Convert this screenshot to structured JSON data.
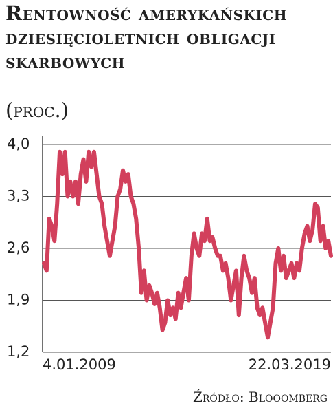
{
  "chart_data": {
    "type": "line",
    "title": "Rentowność amerykańskich dziesięcioletnich obligacji skarbowych",
    "subtitle": "(proc.)",
    "source": "Źródło: Blooomberg",
    "categories": [
      "4.01.2009",
      null,
      null,
      null,
      null,
      null,
      null,
      null,
      null,
      null,
      null,
      null,
      null,
      null,
      null,
      null,
      null,
      null,
      null,
      null,
      null,
      null,
      null,
      null,
      null,
      null,
      null,
      null,
      null,
      null,
      null,
      null,
      null,
      null,
      null,
      null,
      null,
      null,
      null,
      null,
      null,
      null,
      null,
      null,
      null,
      null,
      null,
      null,
      null,
      null,
      null,
      null,
      null,
      null,
      null,
      null,
      null,
      null,
      null,
      null,
      null,
      null,
      null,
      null,
      null,
      null,
      null,
      null,
      null,
      null,
      null,
      null,
      null,
      null,
      null,
      null,
      null,
      null,
      null,
      null,
      null,
      null,
      null,
      null,
      null,
      null,
      null,
      null,
      null,
      null,
      null,
      null,
      null,
      null,
      null,
      null,
      null,
      null,
      null,
      null,
      null,
      null,
      null,
      null,
      null,
      null,
      null,
      null,
      null,
      "22.03.2019"
    ],
    "values": [
      2.4,
      2.3,
      3.0,
      2.9,
      2.7,
      3.2,
      3.9,
      3.6,
      3.9,
      3.3,
      3.5,
      3.3,
      3.5,
      3.2,
      3.6,
      3.8,
      3.5,
      3.9,
      3.7,
      3.9,
      3.6,
      3.3,
      3.2,
      2.9,
      2.7,
      2.5,
      2.7,
      2.9,
      3.3,
      3.4,
      3.65,
      3.5,
      3.6,
      3.3,
      3.2,
      3.0,
      2.6,
      2.0,
      2.3,
      1.9,
      2.1,
      2.0,
      1.85,
      2.0,
      1.8,
      1.5,
      1.6,
      1.9,
      1.7,
      1.8,
      1.65,
      2.0,
      1.8,
      2.0,
      2.2,
      1.9,
      2.5,
      2.8,
      2.6,
      2.5,
      2.8,
      2.7,
      3.0,
      2.7,
      2.75,
      2.6,
      2.5,
      2.5,
      2.3,
      2.4,
      2.2,
      1.9,
      2.1,
      2.3,
      1.7,
      2.2,
      2.5,
      2.3,
      2.2,
      2.0,
      2.2,
      1.8,
      1.7,
      1.8,
      1.6,
      1.4,
      1.6,
      1.8,
      2.4,
      2.6,
      2.3,
      2.5,
      2.2,
      2.3,
      2.4,
      2.2,
      2.4,
      2.3,
      2.6,
      2.8,
      2.9,
      2.7,
      2.85,
      3.2,
      3.15,
      2.7,
      2.9,
      2.6,
      2.7,
      2.5
    ],
    "color": "#d2405c",
    "ylim": [
      1.2,
      4.0
    ],
    "yticks": [
      {
        "value": 1.2,
        "label": "1,2"
      },
      {
        "value": 1.9,
        "label": "1,9"
      },
      {
        "value": 2.6,
        "label": "2,6"
      },
      {
        "value": 3.3,
        "label": "3,3"
      },
      {
        "value": 4.0,
        "label": "4,0"
      }
    ],
    "grid": true
  }
}
